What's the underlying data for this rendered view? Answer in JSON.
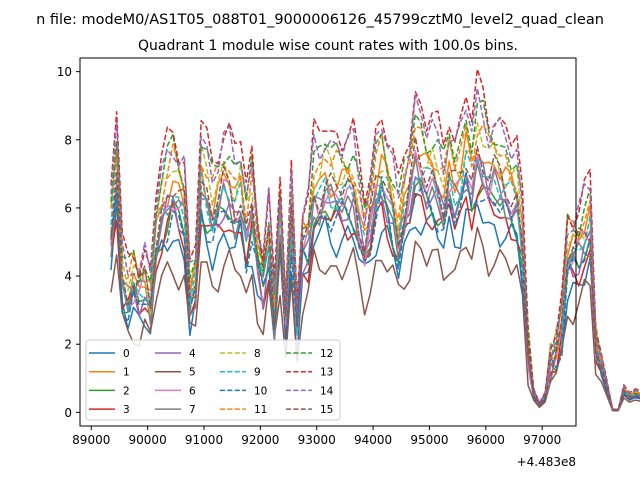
{
  "suptitle": "n file: modeM0/AS1T05_088T01_9000006126_45799cztM0_level2_quad_clean",
  "chart_data": {
    "type": "line",
    "title": "Quadrant 1 module wise count rates with 100.0s bins.",
    "xlabel": "",
    "ylabel": "",
    "offset_label": "+4.483e8",
    "xlim": [
      88800,
      97600
    ],
    "ylim": [
      -0.4,
      10.4
    ],
    "xticks": [
      89000,
      90000,
      91000,
      92000,
      93000,
      94000,
      95000,
      96000,
      97000
    ],
    "xtick_labels": [
      "89000",
      "90000",
      "91000",
      "92000",
      "93000",
      "94000",
      "95000",
      "96000",
      "97000"
    ],
    "yticks": [
      0,
      2,
      4,
      6,
      8,
      10
    ],
    "ytick_labels": [
      "0",
      "2",
      "4",
      "6",
      "8",
      "10"
    ],
    "grid": false,
    "legend_position": "lower-left",
    "x_start": 89350,
    "x_step": 100,
    "mean_profile": [
      5.8,
      7.8,
      4.3,
      3.7,
      4.2,
      3.9,
      4.1,
      3.5,
      5.6,
      6.5,
      6.9,
      7.2,
      6.9,
      6.5,
      3.6,
      4.2,
      7.5,
      7.0,
      6.3,
      6.8,
      7.3,
      7.1,
      6.6,
      7.0,
      5.8,
      6.6,
      5.0,
      4.3,
      5.5,
      3.0,
      6.0,
      3.0,
      6.3,
      2.8,
      5.4,
      5.6,
      7.0,
      7.0,
      7.4,
      7.2,
      7.1,
      7.0,
      7.2,
      7.1,
      6.2,
      5.5,
      6.2,
      7.2,
      7.6,
      7.1,
      6.5,
      5.6,
      6.6,
      7.2,
      8.2,
      7.8,
      7.4,
      7.6,
      7.2,
      6.7,
      7.7,
      7.1,
      7.4,
      8.1,
      7.5,
      8.4,
      8.0,
      7.6,
      7.7,
      7.4,
      7.2,
      6.9,
      6.9,
      5.4,
      2.0,
      0.6,
      0.25,
      0.5,
      1.6,
      2.0,
      2.8,
      5.0,
      5.2,
      5.3,
      5.6,
      6.0,
      2.2,
      1.5,
      0.8,
      0.08,
      0.08,
      0.7,
      0.5,
      0.6,
      0.55,
      3.6,
      4.6,
      1.8,
      1.2,
      0.8,
      0.2
    ],
    "series": [
      {
        "name": "0",
        "color": "#1f77b4",
        "dash": "solid",
        "scale": 0.72,
        "phase": 0.0
      },
      {
        "name": "1",
        "color": "#ff7f0e",
        "dash": "solid",
        "scale": 0.95,
        "phase": 0.7
      },
      {
        "name": "2",
        "color": "#2ca02c",
        "dash": "solid",
        "scale": 0.82,
        "phase": 1.4
      },
      {
        "name": "3",
        "color": "#d62728",
        "dash": "solid",
        "scale": 0.78,
        "phase": 2.1
      },
      {
        "name": "4",
        "color": "#9467bd",
        "dash": "solid",
        "scale": 0.85,
        "phase": 2.8
      },
      {
        "name": "5",
        "color": "#8c564b",
        "dash": "solid",
        "scale": 0.6,
        "phase": 3.5
      },
      {
        "name": "6",
        "color": "#e377c2",
        "dash": "solid",
        "scale": 0.88,
        "phase": 4.2
      },
      {
        "name": "7",
        "color": "#7f7f7f",
        "dash": "solid",
        "scale": 0.86,
        "phase": 4.9
      },
      {
        "name": "8",
        "color": "#bcbd22",
        "dash": "dashed",
        "scale": 0.99,
        "phase": 5.6
      },
      {
        "name": "9",
        "color": "#17becf",
        "dash": "dashed",
        "scale": 0.9,
        "phase": 0.35
      },
      {
        "name": "10",
        "color": "#1f77b4",
        "dash": "dashed",
        "scale": 0.8,
        "phase": 1.05
      },
      {
        "name": "11",
        "color": "#ff7f0e",
        "dash": "dashed",
        "scale": 1.02,
        "phase": 1.75
      },
      {
        "name": "12",
        "color": "#2ca02c",
        "dash": "dashed",
        "scale": 1.07,
        "phase": 2.45
      },
      {
        "name": "13",
        "color": "#d62728",
        "dash": "dashed",
        "scale": 1.15,
        "phase": 3.15
      },
      {
        "name": "14",
        "color": "#9467bd",
        "dash": "dashed",
        "scale": 1.1,
        "phase": 3.85
      },
      {
        "name": "15",
        "color": "#8c564b",
        "dash": "dashed",
        "scale": 0.92,
        "phase": 4.55
      }
    ]
  }
}
